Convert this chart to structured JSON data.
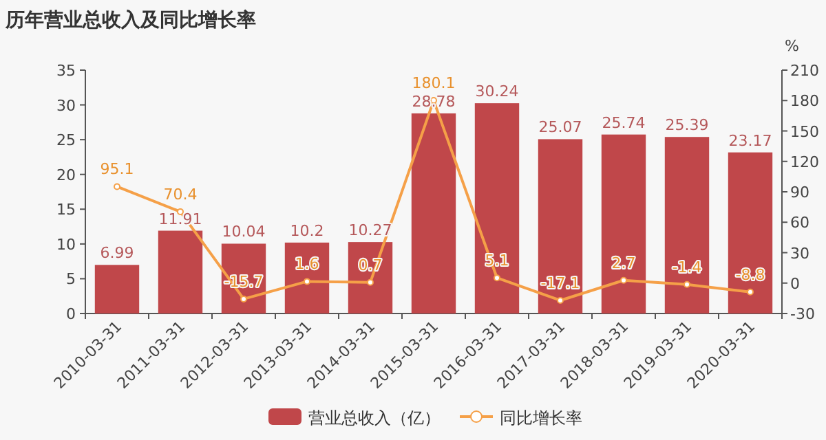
{
  "chart_data": {
    "type": "bar",
    "title": "历年营业总收入及同比增长率",
    "categories": [
      "2010-03-31",
      "2011-03-31",
      "2012-03-31",
      "2013-03-31",
      "2014-03-31",
      "2015-03-31",
      "2016-03-31",
      "2017-03-31",
      "2018-03-31",
      "2019-03-31",
      "2020-03-31"
    ],
    "series": [
      {
        "name": "营业总收入（亿）",
        "color": "#c0474a",
        "values": [
          6.99,
          11.91,
          10.04,
          10.2,
          10.27,
          28.78,
          30.24,
          25.07,
          25.74,
          25.39,
          23.17
        ]
      },
      {
        "name": "同比增长率",
        "type": "line",
        "axis": "y2",
        "color": "#f5a048",
        "marker": "circle",
        "values": [
          95.1,
          70.4,
          -15.7,
          1.6,
          0.7,
          180.1,
          5.1,
          -17.1,
          2.7,
          -1.4,
          -8.8
        ]
      }
    ],
    "ylim": [
      0,
      35
    ],
    "yticks": [
      0,
      5,
      10,
      15,
      20,
      25,
      30,
      35
    ],
    "y2lim": [
      -30,
      210
    ],
    "y2ticks": [
      -30,
      0,
      30,
      60,
      90,
      120,
      150,
      180,
      210
    ],
    "y2label": "%",
    "data_labels": true,
    "grid": false,
    "legend": "bottom"
  }
}
